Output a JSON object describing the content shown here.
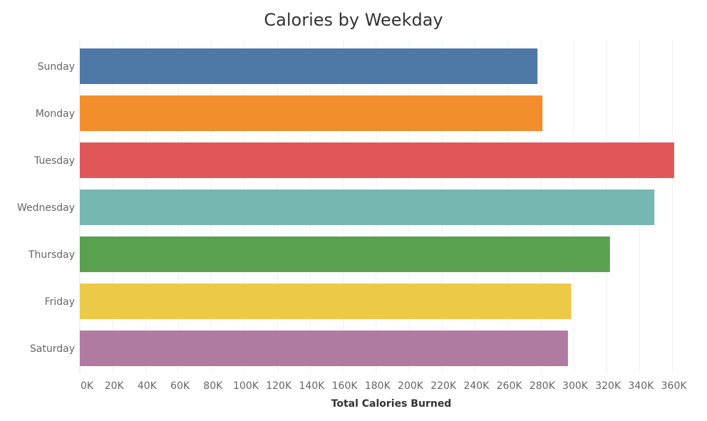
{
  "chart_data": {
    "type": "bar",
    "orientation": "horizontal",
    "title": "Calories by Weekday",
    "xlabel": "Total Calories Burned",
    "ylabel": "",
    "categories": [
      "Sunday",
      "Monday",
      "Tuesday",
      "Wednesday",
      "Thursday",
      "Friday",
      "Saturday"
    ],
    "values": [
      278000,
      281000,
      361000,
      349000,
      322000,
      298500,
      296500
    ],
    "colors": [
      "#4e79a7",
      "#f28e2b",
      "#e15759",
      "#76b7b2",
      "#59a14f",
      "#edc948",
      "#b07aa1"
    ],
    "xlim": [
      0,
      380000
    ],
    "ticks": [
      0,
      20000,
      40000,
      60000,
      80000,
      100000,
      120000,
      140000,
      160000,
      180000,
      200000,
      220000,
      240000,
      260000,
      280000,
      300000,
      320000,
      340000,
      360000
    ],
    "tick_labels": [
      "0K",
      "20K",
      "40K",
      "60K",
      "80K",
      "100K",
      "120K",
      "140K",
      "160K",
      "180K",
      "200K",
      "220K",
      "240K",
      "260K",
      "280K",
      "300K",
      "320K",
      "340K",
      "360K"
    ],
    "grid": "vertical",
    "legend": "none"
  }
}
